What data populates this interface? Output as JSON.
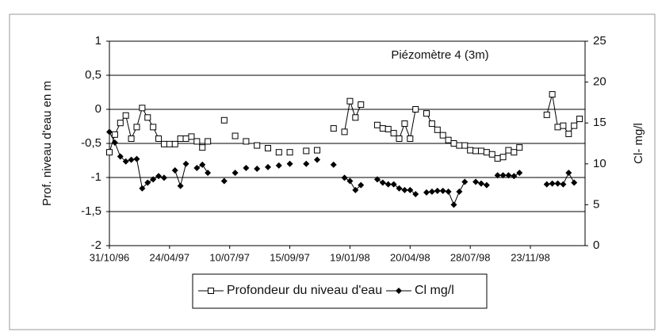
{
  "chart_data": {
    "type": "line",
    "annotation": "Piézomètre 4 (3m)",
    "ylabel": "Prof. niveau d'eau en m",
    "y2label": "Cl- mg/l",
    "categories": [
      "31/10/96",
      null,
      null,
      null,
      null,
      null,
      null,
      null,
      null,
      null,
      null,
      "24/04/97",
      null,
      null,
      null,
      null,
      null,
      null,
      null,
      null,
      null,
      null,
      "10/07/97",
      null,
      null,
      null,
      null,
      null,
      null,
      null,
      null,
      null,
      null,
      "15/09/97",
      null,
      null,
      null,
      null,
      null,
      null,
      null,
      null,
      null,
      null,
      "19/01/98",
      null,
      null,
      null,
      null,
      null,
      null,
      null,
      null,
      null,
      null,
      "20/04/98",
      null,
      null,
      null,
      null,
      null,
      null,
      null,
      null,
      null,
      null,
      "28/07/98",
      null,
      null,
      null,
      null,
      null,
      null,
      null,
      null,
      null,
      null,
      "23/11/98",
      null,
      null,
      null,
      null,
      null,
      null,
      null,
      null,
      null,
      null
    ],
    "series": [
      {
        "name": "Profondeur du niveau d'eau",
        "color": "#000000",
        "marker": "square",
        "values": [
          -0.63,
          -0.37,
          -0.2,
          -0.09,
          -0.43,
          -0.26,
          0.02,
          -0.12,
          -0.26,
          -0.43,
          -0.51,
          -0.51,
          -0.51,
          -0.43,
          -0.43,
          -0.4,
          -0.47,
          -0.56,
          -0.47,
          null,
          null,
          -0.16,
          null,
          -0.39,
          null,
          -0.47,
          null,
          -0.53,
          null,
          -0.57,
          null,
          -0.63,
          null,
          -0.63,
          null,
          null,
          -0.61,
          null,
          -0.6,
          null,
          null,
          -0.28,
          null,
          -0.33,
          0.12,
          -0.12,
          0.07,
          null,
          null,
          -0.23,
          -0.28,
          -0.29,
          -0.35,
          -0.43,
          -0.21,
          -0.43,
          0.0,
          null,
          -0.06,
          -0.21,
          -0.3,
          -0.38,
          -0.45,
          -0.5,
          -0.53,
          -0.53,
          -0.6,
          -0.61,
          -0.61,
          -0.63,
          -0.66,
          -0.72,
          -0.7,
          -0.6,
          -0.63,
          -0.56,
          null,
          null,
          null,
          null,
          -0.08,
          0.22,
          -0.26,
          -0.24,
          -0.36,
          -0.24,
          -0.14,
          null
        ]
      },
      {
        "name": "Cl mg/l",
        "color": "#000000",
        "marker": "diamond",
        "axis": "y2",
        "values": [
          13.9,
          12.6,
          10.9,
          10.3,
          10.5,
          10.6,
          7.0,
          7.7,
          8.1,
          8.5,
          8.3,
          null,
          9.2,
          7.3,
          10.0,
          null,
          9.5,
          9.9,
          8.9,
          null,
          null,
          7.9,
          null,
          8.9,
          null,
          9.5,
          null,
          9.4,
          null,
          9.6,
          null,
          9.8,
          null,
          10.0,
          null,
          null,
          10.0,
          null,
          10.5,
          null,
          null,
          9.9,
          null,
          8.3,
          7.9,
          6.8,
          7.4,
          null,
          null,
          8.1,
          7.7,
          7.5,
          7.5,
          7.0,
          6.8,
          6.8,
          6.3,
          null,
          6.5,
          6.6,
          6.7,
          6.7,
          6.6,
          5.0,
          6.6,
          7.8,
          null,
          7.8,
          7.6,
          7.4,
          null,
          8.6,
          8.6,
          8.6,
          8.5,
          8.9,
          null,
          null,
          null,
          null,
          7.5,
          7.6,
          7.6,
          7.5,
          8.9,
          7.7,
          null,
          null
        ]
      }
    ],
    "ylim": [
      -2,
      1
    ],
    "yticks": [
      {
        "value": -2,
        "label": "-2"
      },
      {
        "value": -1.5,
        "label": "-1,5"
      },
      -1,
      {
        "value": -0.5,
        "label": "-0,5"
      },
      0,
      {
        "value": 0.5,
        "label": "0,5"
      },
      1
    ],
    "y2lim": [
      0,
      25
    ],
    "y2ticks": [
      0,
      5,
      10,
      15,
      20,
      25
    ],
    "grid": true,
    "legend": "bottom"
  }
}
